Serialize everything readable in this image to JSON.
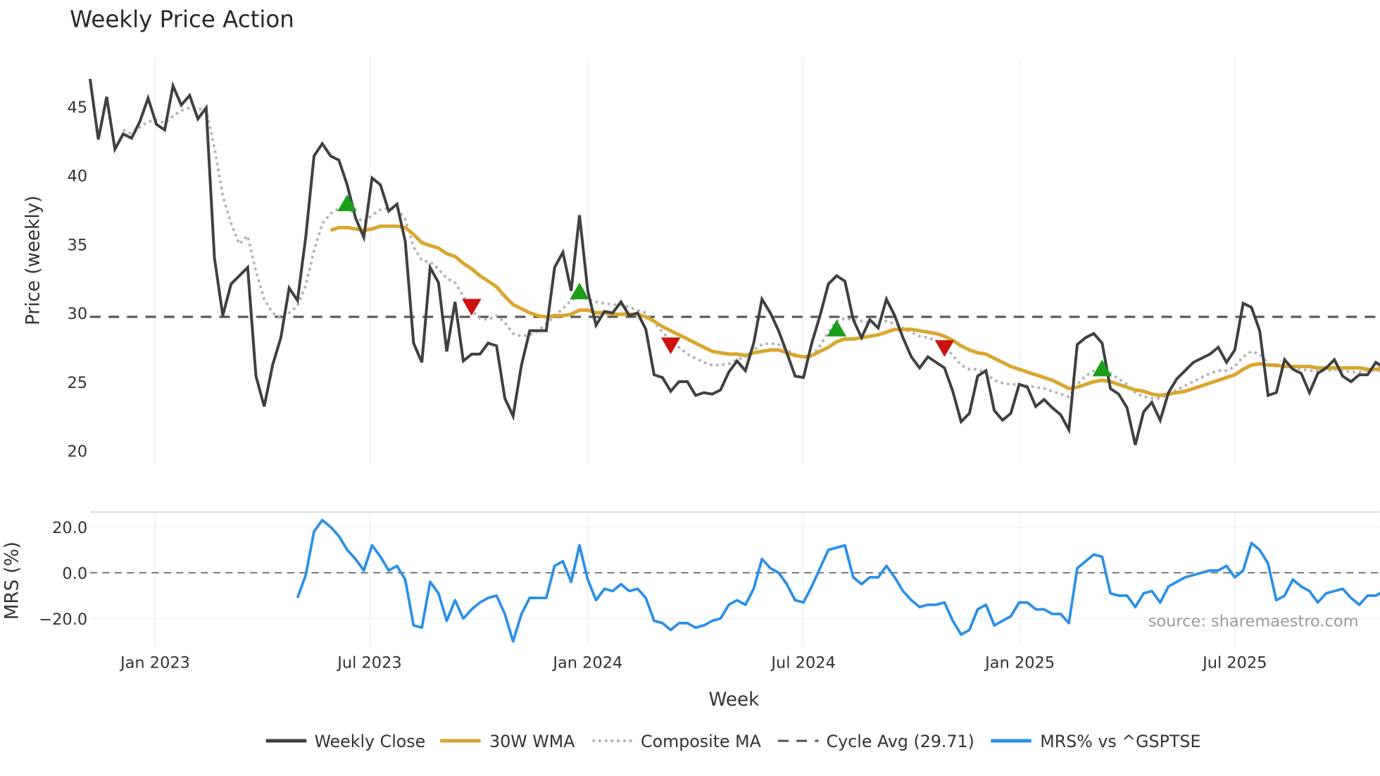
{
  "chart_data": [
    {
      "type": "line",
      "title": "Weekly Price Action",
      "ylabel": "Price (weekly)",
      "xlabel": "Week",
      "start_week": "2022-11-07",
      "ylim": [
        18.9,
        48.8
      ],
      "yticks": [
        20,
        25,
        30,
        35,
        40,
        45
      ],
      "grid": "vertical",
      "series": [
        {
          "name": "Weekly Close",
          "color": "#404040",
          "start_index": 0,
          "values": [
            47.0,
            42.6,
            45.7,
            41.9,
            43.0,
            42.7,
            43.9,
            45.6,
            43.7,
            43.3,
            46.5,
            45.1,
            45.8,
            44.1,
            44.9,
            34.0,
            29.8,
            32.1,
            32.7,
            33.3,
            25.4,
            23.2,
            26.2,
            28.2,
            31.8,
            30.9,
            35.5,
            41.4,
            42.3,
            41.4,
            41.1,
            39.3,
            36.9,
            35.5,
            39.8,
            39.3,
            37.4,
            37.9,
            35.2,
            27.8,
            26.4,
            33.3,
            32.2,
            27.2,
            30.8,
            26.5,
            27.0,
            27.0,
            27.8,
            27.6,
            23.8,
            22.5,
            26.2,
            28.7,
            28.7,
            28.7,
            33.3,
            34.4,
            31.6,
            37.1,
            31.6,
            29.1,
            30.1,
            30.0,
            30.8,
            29.8,
            30.0,
            28.8,
            25.5,
            25.3,
            24.3,
            25.0,
            25.0,
            24.0,
            24.2,
            24.1,
            24.4,
            25.7,
            26.5,
            25.8,
            27.8,
            31.0,
            30.0,
            28.7,
            27.1,
            25.4,
            25.3,
            27.8,
            29.8,
            32.1,
            32.7,
            32.3,
            29.5,
            28.2,
            29.5,
            28.9,
            31.0,
            29.8,
            28.2,
            26.8,
            26.0,
            26.8,
            26.4,
            26.0,
            24.3,
            22.1,
            22.7,
            25.4,
            25.8,
            22.9,
            22.2,
            22.7,
            24.8,
            24.6,
            23.2,
            23.7,
            23.1,
            22.6,
            21.5,
            27.7,
            28.2,
            28.5,
            27.8,
            24.5,
            24.1,
            23.1,
            20.4,
            22.8,
            23.5,
            22.2,
            24.2,
            25.2,
            25.8,
            26.4,
            26.7,
            27.0,
            27.5,
            26.4,
            27.3,
            30.7,
            30.4,
            28.7,
            24.0,
            24.2,
            26.6,
            25.9,
            25.6,
            24.2,
            25.6,
            26.0,
            26.6,
            25.4,
            25.0,
            25.5,
            25.5,
            26.4,
            26.0
          ]
        },
        {
          "name": "30W WMA",
          "color": "#d9a62e",
          "start_index": 29,
          "values": [
            36.0,
            36.2,
            36.2,
            36.1,
            36.0,
            36.1,
            36.3,
            36.3,
            36.3,
            36.2,
            35.7,
            35.1,
            34.9,
            34.7,
            34.3,
            34.1,
            33.6,
            33.2,
            32.7,
            32.3,
            31.9,
            31.2,
            30.6,
            30.3,
            30.0,
            29.8,
            29.7,
            29.8,
            29.8,
            29.9,
            30.2,
            30.2,
            30.0,
            30.0,
            29.9,
            29.9,
            29.9,
            29.9,
            29.7,
            29.4,
            29.0,
            28.7,
            28.4,
            28.1,
            27.8,
            27.5,
            27.2,
            27.1,
            27.0,
            27.0,
            26.9,
            27.1,
            27.2,
            27.3,
            27.3,
            27.1,
            26.9,
            26.8,
            26.9,
            27.2,
            27.5,
            27.9,
            28.1,
            28.1,
            28.2,
            28.3,
            28.4,
            28.6,
            28.8,
            28.8,
            28.8,
            28.7,
            28.6,
            28.5,
            28.3,
            28.0,
            27.6,
            27.3,
            27.1,
            27.0,
            26.7,
            26.4,
            26.1,
            25.9,
            25.7,
            25.5,
            25.3,
            25.1,
            24.8,
            24.5,
            24.6,
            24.8,
            25.0,
            25.1,
            25.0,
            24.8,
            24.6,
            24.4,
            24.3,
            24.1,
            24.0,
            24.1,
            24.2,
            24.3,
            24.5,
            24.7,
            24.9,
            25.1,
            25.3,
            25.5,
            25.9,
            26.2,
            26.3,
            26.2,
            26.2,
            26.1,
            26.1,
            26.1,
            26.1,
            26.0,
            26.0,
            26.0,
            26.0,
            26.0,
            26.0,
            25.9,
            25.9,
            26.0
          ]
        },
        {
          "name": "Composite MA",
          "color": "#b3b3b3",
          "start_index": 4,
          "values": [
            43.3,
            43.0,
            43.5,
            43.9,
            44.0,
            43.8,
            44.3,
            44.7,
            44.9,
            44.8,
            44.8,
            42.0,
            38.5,
            36.5,
            35.0,
            35.6,
            33.0,
            31.0,
            30.0,
            29.6,
            30.0,
            30.5,
            32.0,
            34.5,
            36.5,
            37.2,
            37.6,
            37.8,
            37.0,
            36.6,
            37.1,
            37.5,
            37.6,
            37.6,
            36.8,
            34.8,
            33.8,
            33.7,
            33.2,
            32.5,
            32.2,
            31.2,
            30.2,
            29.6,
            29.5,
            29.8,
            29.3,
            28.5,
            28.3,
            28.4,
            28.7,
            29.2,
            29.8,
            30.3,
            30.9,
            31.2,
            31.0,
            30.8,
            30.7,
            30.6,
            30.6,
            30.4,
            30.2,
            30.0,
            29.3,
            28.6,
            28.0,
            27.5,
            27.0,
            26.7,
            26.4,
            26.2,
            26.2,
            26.3,
            26.6,
            26.8,
            27.3,
            27.7,
            27.8,
            27.7,
            27.3,
            27.0,
            26.7,
            26.9,
            27.6,
            28.6,
            29.4,
            29.6,
            29.5,
            29.4,
            29.3,
            29.3,
            29.4,
            29.2,
            28.9,
            28.6,
            28.3,
            28.2,
            28.0,
            27.6,
            26.9,
            26.2,
            25.9,
            25.9,
            25.6,
            25.1,
            24.9,
            24.8,
            24.8,
            24.7,
            24.6,
            24.5,
            24.3,
            24.1,
            23.9,
            24.8,
            25.4,
            25.8,
            25.9,
            25.6,
            25.2,
            24.8,
            24.2,
            23.9,
            23.8,
            23.8,
            24.1,
            24.4,
            24.7,
            25.0,
            25.3,
            25.6,
            25.8,
            25.8,
            26.1,
            26.8,
            27.2,
            27.0,
            26.3,
            26.1,
            26.2,
            26.1,
            25.9,
            25.8,
            25.8,
            25.8,
            25.9,
            25.8,
            25.7,
            25.7,
            25.8,
            25.8,
            25.8
          ]
        }
      ],
      "cycle_average": {
        "name": "Cycle Avg (29.71)",
        "value": 29.71,
        "color": "#555555"
      },
      "signals": {
        "buy": [
          {
            "index": 31,
            "value": 37.9
          },
          {
            "index": 59,
            "value": 31.5
          },
          {
            "index": 90,
            "value": 28.8
          },
          {
            "index": 122,
            "value": 25.9
          }
        ],
        "sell": [
          {
            "index": 46,
            "value": 30.5
          },
          {
            "index": 70,
            "value": 27.7
          },
          {
            "index": 103,
            "value": 27.5
          }
        ],
        "buy_color": "#1a9e1a",
        "sell_color": "#cc1111"
      }
    },
    {
      "type": "line",
      "ylabel": "MRS (%)",
      "ylim": [
        -32,
        27
      ],
      "yticks": [
        20,
        0,
        -20
      ],
      "ytick_labels": [
        "20.0",
        "0.0",
        "−20.0"
      ],
      "series": [
        {
          "name": "MRS% vs ^GSPTSE",
          "color": "#2b8fe8",
          "start_index": 25,
          "values": [
            -11,
            -1,
            18,
            23,
            20,
            16,
            10,
            6,
            1,
            12,
            7,
            1,
            3,
            -3,
            -23,
            -24,
            -4,
            -9,
            -21,
            -12,
            -20,
            -16,
            -13,
            -11,
            -10,
            -18,
            -30,
            -18,
            -11,
            -11,
            -11,
            3,
            5,
            -4,
            12,
            -3,
            -12,
            -7,
            -8,
            -5,
            -8,
            -7,
            -11,
            -21,
            -22,
            -25,
            -22,
            -22,
            -24,
            -23,
            -21,
            -20,
            -14,
            -12,
            -14,
            -7,
            6,
            2,
            0,
            -5,
            -12,
            -13,
            -6,
            2,
            10,
            11,
            12,
            -2,
            -5,
            -2,
            -2,
            3,
            -2,
            -8,
            -12,
            -15,
            -14,
            -14,
            -13,
            -21,
            -27,
            -25,
            -16,
            -14,
            -23,
            -21,
            -19,
            -13,
            -13,
            -16,
            -16,
            -18,
            -18,
            -22,
            2,
            5,
            8,
            7,
            -9,
            -10,
            -10,
            -15,
            -9,
            -8,
            -13,
            -6,
            -4,
            -2,
            -1,
            0,
            1,
            1,
            3,
            -2,
            1,
            13,
            10,
            4,
            -12,
            -10,
            -3,
            -6,
            -8,
            -13,
            -9,
            -8,
            -7,
            -11,
            -14,
            -10,
            -10,
            -8
          ]
        }
      ],
      "zero_line": 0
    }
  ],
  "xticks": [
    {
      "label": "Jan 2023",
      "index": 7.86
    },
    {
      "label": "Jul 2023",
      "index": 33.7
    },
    {
      "label": "Jan 2024",
      "index": 60
    },
    {
      "label": "Jul 2024",
      "index": 86
    },
    {
      "label": "Jan 2025",
      "index": 112.1
    },
    {
      "label": "Jul 2025",
      "index": 138
    }
  ],
  "legend": [
    "Weekly Close",
    "30W WMA",
    "Composite MA",
    "Cycle Avg (29.71)",
    "MRS% vs ^GSPTSE"
  ],
  "source": "source: sharemaestro.com"
}
